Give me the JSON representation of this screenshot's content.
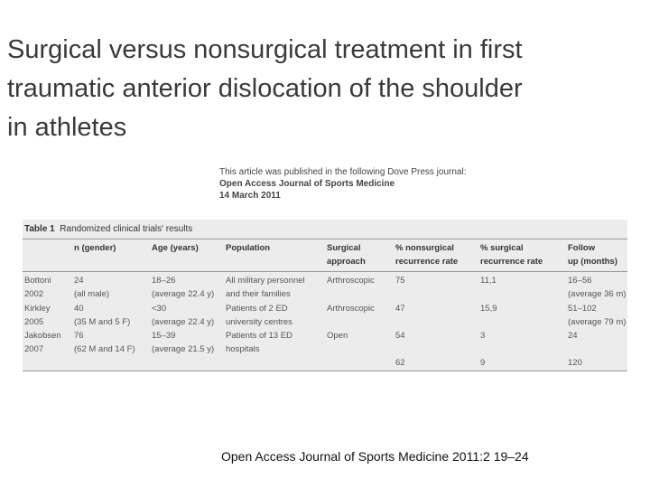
{
  "title": [
    "Surgical versus nonsurgical treatment in first",
    "traumatic anterior dislocation of the shoulder",
    "in athletes"
  ],
  "publication_note": [
    "This article was published in the following Dove Press journal:",
    "Open Access Journal of Sports Medicine",
    "14 March 2011"
  ],
  "table": {
    "caption_label": "Table 1",
    "caption": "Randomized clinical trials' results",
    "headers": [
      null,
      [
        "n (gender)"
      ],
      [
        "Age (years)"
      ],
      [
        "Population"
      ],
      [
        "Surgical",
        "approach"
      ],
      [
        "% nonsurgical",
        "recurrence rate"
      ],
      [
        "% surgical",
        "recurrence rate"
      ],
      [
        "Follow",
        "up (months)"
      ]
    ],
    "rows": [
      [
        [
          "Bottoni",
          "2002"
        ],
        [
          "24",
          "(all male)"
        ],
        [
          "18–26",
          "(average 22.4 y)"
        ],
        [
          "All military personnel",
          "and their families"
        ],
        [
          "Arthroscopic"
        ],
        [
          "75"
        ],
        [
          "11,1"
        ],
        [
          "16–56",
          "(average 36 m)"
        ]
      ],
      [
        [
          "Kirkley",
          "2005"
        ],
        [
          "40",
          "(35 M and 5 F)"
        ],
        [
          "<30",
          "(average 22.4 y)"
        ],
        [
          "Patients of 2 ED",
          "university centres"
        ],
        [
          "Arthroscopic"
        ],
        [
          "47"
        ],
        [
          "15,9"
        ],
        [
          "51–102",
          "(average 79 m)"
        ]
      ],
      [
        [
          "Jakobsen",
          "2007"
        ],
        [
          "76",
          "(62 M and 14 F)"
        ],
        [
          "15–39",
          "(average 21.5 y)"
        ],
        [
          "Patients of 13 ED",
          "hospitals"
        ],
        [
          "Open"
        ],
        [
          "54"
        ],
        [
          "3"
        ],
        [
          "24"
        ]
      ],
      [
        null,
        null,
        null,
        null,
        null,
        [
          "62"
        ],
        [
          "9"
        ],
        [
          "120"
        ]
      ]
    ]
  },
  "citation": "Open Access Journal of Sports Medicine 2011:2 19–24"
}
